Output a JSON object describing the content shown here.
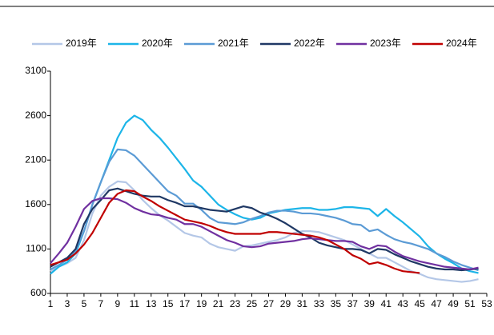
{
  "chart_data": {
    "type": "line",
    "x": [
      1,
      2,
      3,
      4,
      5,
      6,
      7,
      8,
      9,
      10,
      11,
      12,
      13,
      14,
      15,
      16,
      17,
      18,
      19,
      20,
      21,
      22,
      23,
      24,
      25,
      26,
      27,
      28,
      29,
      30,
      31,
      32,
      33,
      34,
      35,
      36,
      37,
      38,
      39,
      40,
      41,
      42,
      43,
      44,
      45,
      46,
      47,
      48,
      49,
      50,
      51,
      52
    ],
    "xlim": [
      1,
      53
    ],
    "xticks": [
      1,
      3,
      5,
      7,
      9,
      11,
      13,
      15,
      17,
      19,
      21,
      23,
      25,
      27,
      29,
      31,
      33,
      35,
      37,
      39,
      41,
      43,
      45,
      47,
      49,
      51,
      53
    ],
    "ylim": [
      600,
      3100
    ],
    "yticks": [
      600,
      1100,
      1600,
      2100,
      2600,
      3100
    ],
    "grid": false,
    "legend": "top",
    "series": [
      {
        "name": "2019年",
        "color": "#b4c7e7",
        "values": [
          850,
          900,
          940,
          1000,
          1200,
          1500,
          1700,
          1800,
          1860,
          1850,
          1760,
          1650,
          1560,
          1480,
          1420,
          1350,
          1280,
          1250,
          1230,
          1160,
          1120,
          1100,
          1080,
          1130,
          1140,
          1160,
          1180,
          1200,
          1230,
          1280,
          1300,
          1300,
          1290,
          1260,
          1230,
          1200,
          1150,
          1100,
          1050,
          1000,
          1000,
          950,
          900,
          850,
          820,
          780,
          760,
          750,
          740,
          730,
          740,
          760
        ]
      },
      {
        "name": "2020年",
        "color": "#1cb5e8",
        "values": [
          820,
          900,
          950,
          1050,
          1300,
          1600,
          1850,
          2100,
          2350,
          2520,
          2600,
          2550,
          2440,
          2350,
          2240,
          2120,
          2000,
          1870,
          1800,
          1700,
          1600,
          1540,
          1490,
          1450,
          1430,
          1450,
          1500,
          1520,
          1540,
          1550,
          1560,
          1560,
          1540,
          1540,
          1550,
          1570,
          1570,
          1560,
          1550,
          1470,
          1550,
          1470,
          1400,
          1320,
          1240,
          1130,
          1050,
          990,
          940,
          880,
          850,
          830
        ]
      },
      {
        "name": "2021年",
        "color": "#5b9bd5",
        "values": [
          870,
          920,
          980,
          1080,
          1300,
          1600,
          1850,
          2080,
          2220,
          2210,
          2150,
          2050,
          1950,
          1850,
          1750,
          1700,
          1610,
          1610,
          1540,
          1450,
          1400,
          1390,
          1380,
          1400,
          1440,
          1470,
          1510,
          1530,
          1530,
          1520,
          1500,
          1500,
          1490,
          1470,
          1450,
          1420,
          1380,
          1370,
          1300,
          1320,
          1260,
          1210,
          1180,
          1160,
          1130,
          1100,
          1050,
          1010,
          960,
          920,
          890,
          860
        ]
      },
      {
        "name": "2022年",
        "color": "#1f3864",
        "values": [
          900,
          950,
          1000,
          1100,
          1380,
          1550,
          1650,
          1760,
          1780,
          1750,
          1720,
          1700,
          1690,
          1690,
          1650,
          1620,
          1580,
          1580,
          1560,
          1540,
          1530,
          1520,
          1550,
          1580,
          1560,
          1510,
          1480,
          1440,
          1390,
          1330,
          1270,
          1230,
          1170,
          1140,
          1120,
          1100,
          1100,
          1090,
          1050,
          1100,
          1090,
          1040,
          1000,
          960,
          930,
          900,
          880,
          870,
          870,
          860,
          870,
          880
        ]
      },
      {
        "name": "2023年",
        "color": "#7030a0",
        "values": [
          940,
          1050,
          1170,
          1350,
          1550,
          1640,
          1670,
          1670,
          1660,
          1620,
          1560,
          1520,
          1490,
          1480,
          1450,
          1430,
          1380,
          1380,
          1350,
          1300,
          1250,
          1200,
          1170,
          1130,
          1120,
          1130,
          1160,
          1170,
          1180,
          1190,
          1210,
          1220,
          1210,
          1200,
          1190,
          1190,
          1180,
          1130,
          1100,
          1140,
          1130,
          1070,
          1020,
          990,
          960,
          940,
          920,
          900,
          890,
          880,
          870,
          890
        ]
      },
      {
        "name": "2024年",
        "color": "#c00000",
        "values": [
          920,
          950,
          980,
          1050,
          1150,
          1280,
          1450,
          1620,
          1720,
          1760,
          1750,
          1690,
          1640,
          1580,
          1530,
          1480,
          1430,
          1410,
          1390,
          1360,
          1320,
          1290,
          1270,
          1270,
          1270,
          1270,
          1290,
          1290,
          1280,
          1270,
          1260,
          1250,
          1230,
          1200,
          1150,
          1100,
          1030,
          990,
          930,
          950,
          920,
          880,
          850,
          840,
          830,
          null,
          null,
          null,
          null,
          null,
          null,
          null
        ]
      }
    ]
  }
}
